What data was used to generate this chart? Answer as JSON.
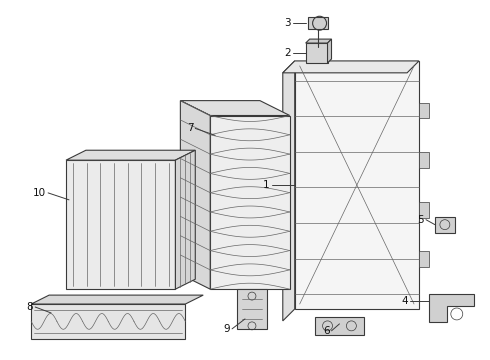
{
  "bg_color": "#ffffff",
  "lc": "#3a3a3a",
  "lc2": "#666666",
  "figsize": [
    4.9,
    3.6
  ],
  "dpi": 100
}
